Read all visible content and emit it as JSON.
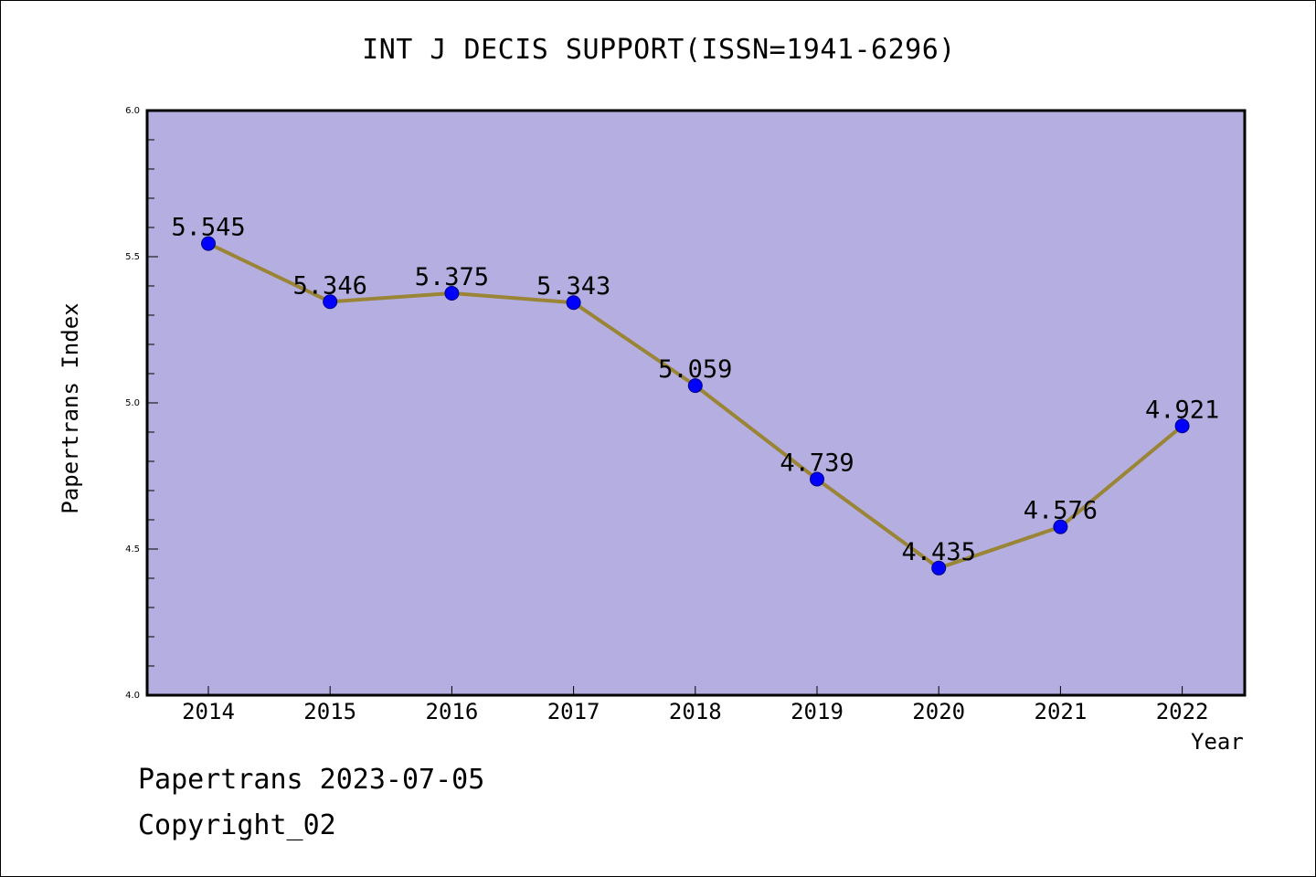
{
  "title": "INT J DECIS SUPPORT(ISSN=1941-6296)",
  "footer": {
    "line1": "Papertrans 2023-07-05",
    "line2": "Copyright_02"
  },
  "colors": {
    "plot_background": "#b5aee1",
    "line": "#9a8536",
    "marker": "#0000ff",
    "marker_edge": "#000080"
  },
  "chart_data": {
    "type": "line",
    "title": "INT J DECIS SUPPORT(ISSN=1941-6296)",
    "xlabel": "Year",
    "ylabel": "Papertrans Index",
    "x": [
      "2014",
      "2015",
      "2016",
      "2017",
      "2018",
      "2019",
      "2020",
      "2021",
      "2022"
    ],
    "series": [
      {
        "values": [
          5.545,
          5.346,
          5.375,
          5.343,
          5.059,
          4.739,
          4.435,
          4.576,
          4.921
        ],
        "labels": [
          "5.545",
          "5.346",
          "5.375",
          "5.343",
          "5.059",
          "4.739",
          "4.435",
          "4.576",
          "4.921"
        ]
      }
    ],
    "ylim": [
      4.0,
      6.0
    ],
    "yticks": [
      "4.0",
      "4.5",
      "5.0",
      "5.5",
      "6.0"
    ],
    "grid": false,
    "legend": "none"
  }
}
